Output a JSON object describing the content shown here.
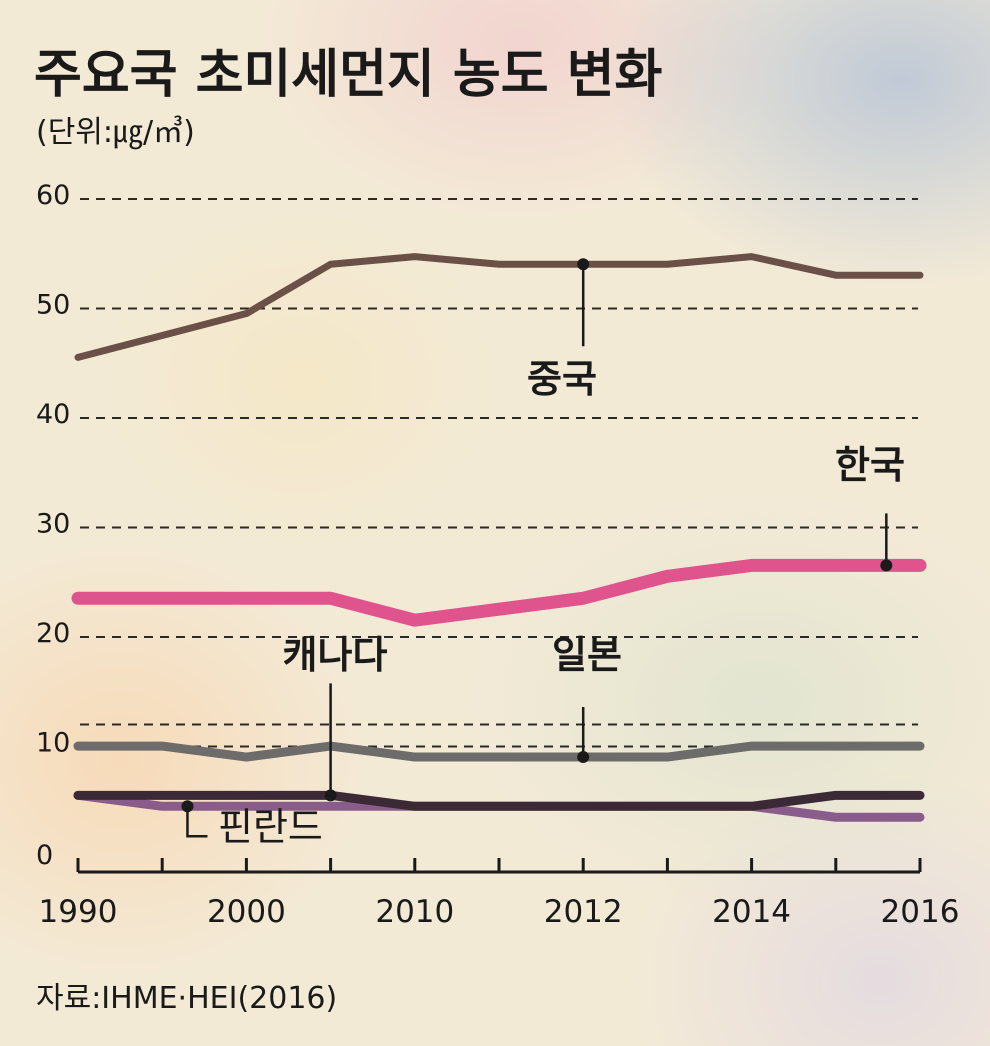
{
  "chart_data": {
    "type": "line",
    "title": "주요국 초미세먼지 농도 변화",
    "unit": "(단위:㎍/㎥)",
    "source": "자료:IHME·HEI(2016)",
    "x": [
      "1990",
      "1995",
      "2000",
      "2005",
      "2010",
      "2011",
      "2012",
      "2013",
      "2014",
      "2015",
      "2016"
    ],
    "xtick_labels": [
      "1990",
      "2000",
      "2010",
      "2012",
      "2014",
      "2016"
    ],
    "yticks": [
      0,
      10,
      20,
      30,
      40,
      50,
      60
    ],
    "ylim": [
      0,
      60
    ],
    "grid": "dashed horizontal",
    "series": [
      {
        "name": "중국",
        "color": "#6b5048",
        "values": [
          47,
          49,
          51,
          55.5,
          56.2,
          55.5,
          55.5,
          55.5,
          56.2,
          54.5,
          54.5
        ]
      },
      {
        "name": "한국",
        "color": "#e0548e",
        "values": [
          25,
          25,
          25,
          25,
          23,
          24,
          25,
          27,
          28,
          28,
          28
        ]
      },
      {
        "name": "일본",
        "color": "#6e6c6a",
        "values": [
          11.5,
          11.5,
          10.5,
          11.5,
          10.5,
          10.5,
          10.5,
          10.5,
          11.5,
          11.5,
          11.5
        ]
      },
      {
        "name": "캐나다",
        "color": "#3b2a35",
        "values": [
          7,
          7,
          7,
          7,
          6,
          6,
          6,
          6,
          6,
          7,
          7
        ]
      },
      {
        "name": "핀란드",
        "color": "#8a5c8c",
        "values": [
          7,
          6,
          6,
          6,
          6,
          6,
          6,
          6,
          6,
          5,
          5
        ]
      }
    ]
  }
}
